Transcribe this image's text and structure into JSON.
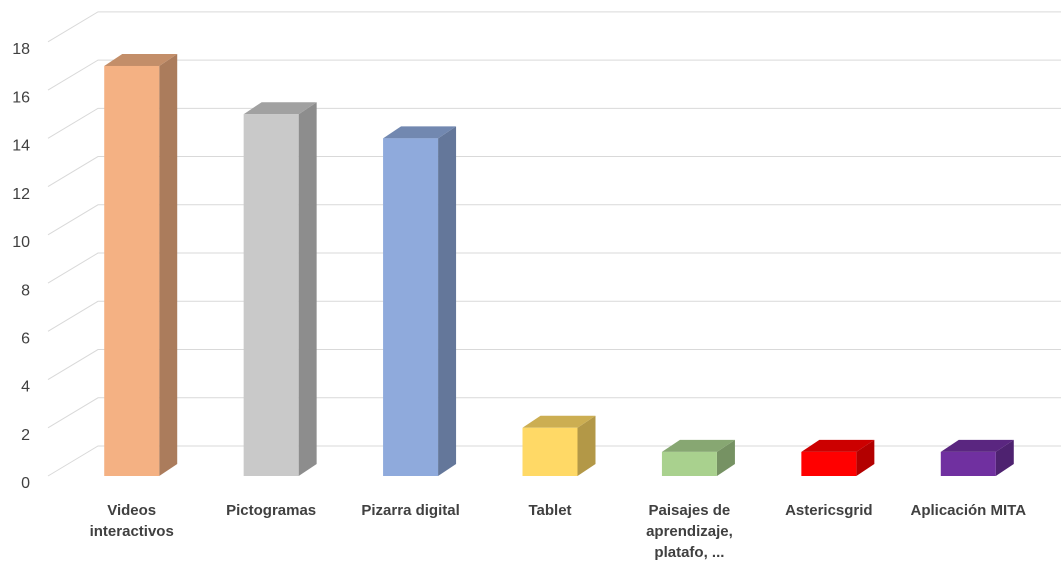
{
  "chart_data": {
    "type": "bar3d",
    "categories": [
      "Videos interactivos",
      "Pictogramas",
      "Pizarra digital",
      "Tablet",
      "Paisajes de aprendizaje, platafo, ...",
      "Astericsgrid",
      "Aplicación MITA"
    ],
    "values": [
      17,
      15,
      14,
      2,
      1,
      1,
      1
    ],
    "colors": [
      "#f4b183",
      "#c9c9c9",
      "#8faadc",
      "#ffd966",
      "#a9d18e",
      "#ff0000",
      "#7030a0"
    ],
    "ylim": [
      0,
      18
    ],
    "yticks": [
      0,
      2,
      4,
      6,
      8,
      10,
      12,
      14,
      16,
      18
    ],
    "grid": true
  }
}
